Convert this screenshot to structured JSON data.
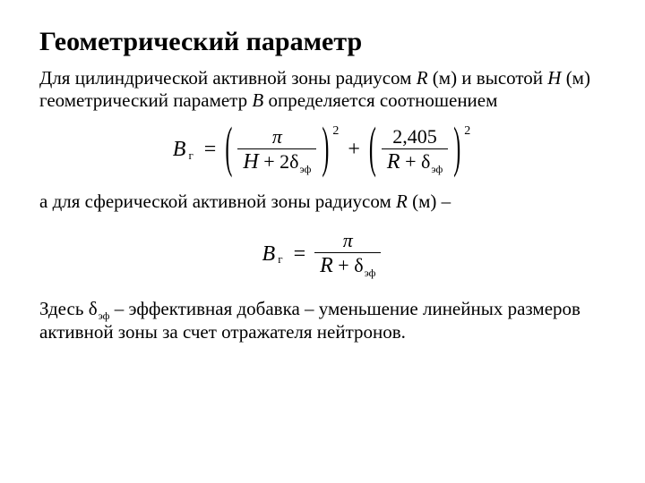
{
  "colors": {
    "background": "#ffffff",
    "text": "#000000",
    "rule": "#000000"
  },
  "typography": {
    "body_font": "Times New Roman",
    "title_fontsize_pt": 30,
    "title_weight": "bold",
    "body_fontsize_pt": 21,
    "formula_fontsize_pt": 24
  },
  "title": "Геометрический параметр",
  "para1_a": "Для цилиндрической активной зоны радиусом ",
  "para1_R": "R",
  "para1_b": " (м) и высотой ",
  "para1_H": "H",
  "para1_c": " (м) геометрический параметр ",
  "para1_B": "B",
  "para1_d": " определяется соотношением",
  "formula1": {
    "lhs_symbol": "B",
    "lhs_sub": "г",
    "eq": "=",
    "term1": {
      "numerator_pi": "π",
      "den_H": "H",
      "den_plus": " + 2",
      "den_delta": "δ",
      "den_delta_sub": "эф",
      "exp": "2"
    },
    "plus": "+",
    "term2": {
      "numerator_val": "2,405",
      "den_R": "R",
      "den_plus": " + ",
      "den_delta": "δ",
      "den_delta_sub": "эф",
      "exp": "2"
    }
  },
  "para2_a": "а для сферической активной зоны радиусом ",
  "para2_R": "R",
  "para2_b": " (м) –",
  "formula2": {
    "lhs_symbol": "B",
    "lhs_sub": "г",
    "eq": "=",
    "numerator_pi": "π",
    "den_R": "R",
    "den_plus": " + ",
    "den_delta": "δ",
    "den_delta_sub": "эф"
  },
  "para3_a": "Здесь ",
  "para3_delta": "δ",
  "para3_delta_sub": "эф",
  "para3_b": " – эффективная добавка – уменьшение линейных размеров активной зоны за счет отражателя нейтронов."
}
